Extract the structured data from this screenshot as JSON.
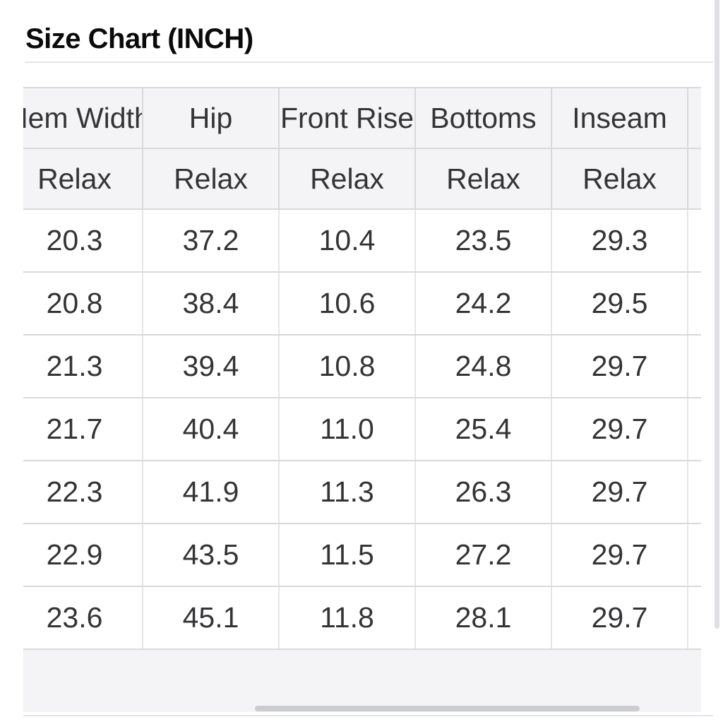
{
  "page": {
    "title": "Size Chart (INCH)"
  },
  "size_table": {
    "columns": [
      "Hem Width",
      "Hip",
      "Front Rise",
      "Bottoms",
      "Inseam",
      ""
    ],
    "fit_row": [
      "Relax",
      "Relax",
      "Relax",
      "Relax",
      "Relax",
      ""
    ],
    "rows": [
      [
        "20.3",
        "37.2",
        "10.4",
        "23.5",
        "29.3",
        ""
      ],
      [
        "20.8",
        "38.4",
        "10.6",
        "24.2",
        "29.5",
        ""
      ],
      [
        "21.3",
        "39.4",
        "10.8",
        "24.8",
        "29.7",
        ""
      ],
      [
        "21.7",
        "40.4",
        "11.0",
        "25.4",
        "29.7",
        ""
      ],
      [
        "22.3",
        "41.9",
        "11.3",
        "26.3",
        "29.7",
        ""
      ],
      [
        "22.9",
        "43.5",
        "11.5",
        "27.2",
        "29.7",
        ""
      ],
      [
        "23.6",
        "45.1",
        "11.8",
        "28.1",
        "29.7",
        ""
      ]
    ]
  },
  "colors": {
    "header_bg": "#f4f4f6",
    "row_bg": "#ffffff",
    "border": "#d9d9db",
    "text": "#343437",
    "title_text": "#0a0a0a",
    "h_scrollbar_thumb": "#cccdd0",
    "v_scrollbar_thumb": "#e0e0e3"
  }
}
